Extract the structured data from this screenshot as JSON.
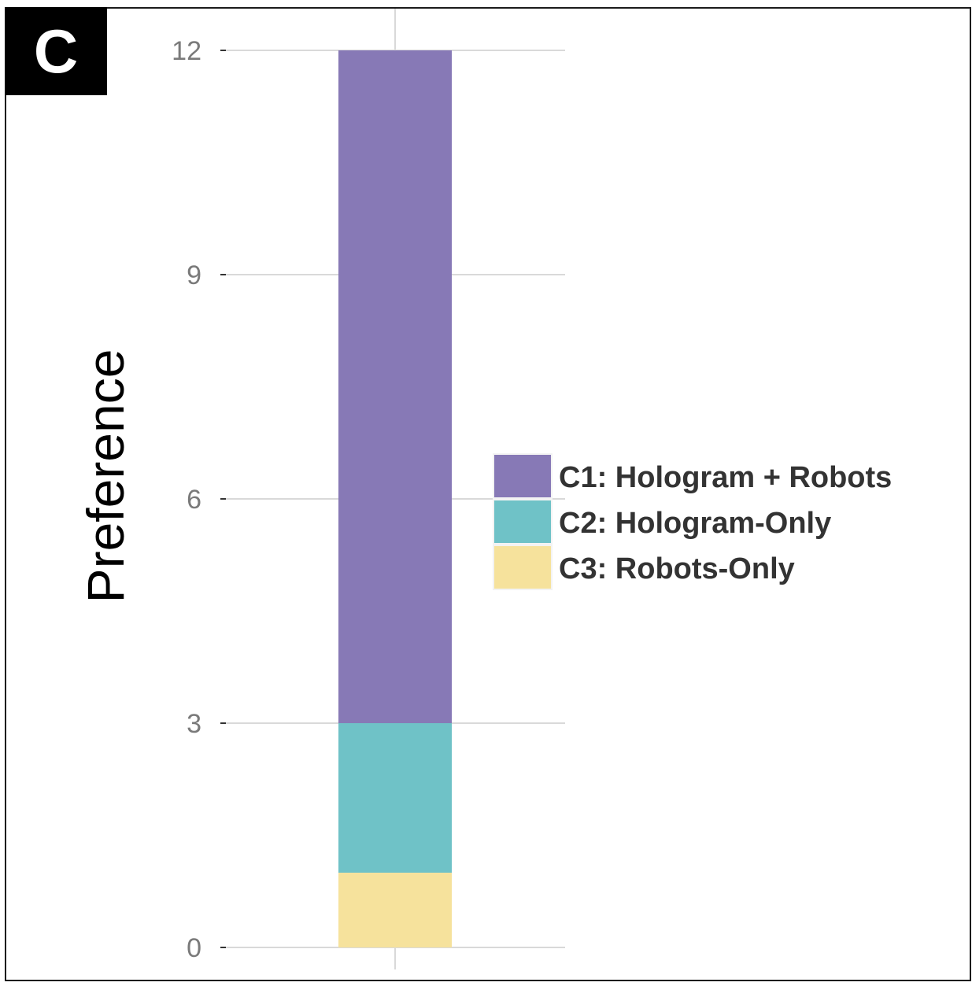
{
  "panel_label": "C",
  "colors": {
    "c1": "#8779b6",
    "c2": "#6fc2c7",
    "c3": "#f6e29c",
    "grid": "#d9d9d9"
  },
  "chart_data": {
    "type": "bar",
    "stacked": true,
    "ylabel": "Preference",
    "xlabel": "",
    "ylim": [
      0,
      12
    ],
    "yticks": [
      0,
      3,
      6,
      9,
      12
    ],
    "categories": [
      ""
    ],
    "series": [
      {
        "name": "C3: Robots-Only",
        "values": [
          1
        ],
        "color": "#f6e29c"
      },
      {
        "name": "C2: Hologram-Only",
        "values": [
          2
        ],
        "color": "#6fc2c7"
      },
      {
        "name": "C1: Hologram + Robots",
        "values": [
          9
        ],
        "color": "#8779b6"
      }
    ],
    "legend": {
      "placement": "right",
      "entries": [
        "C1: Hologram + Robots",
        "C2: Hologram-Only",
        "C3: Robots-Only"
      ]
    },
    "grid": true
  }
}
